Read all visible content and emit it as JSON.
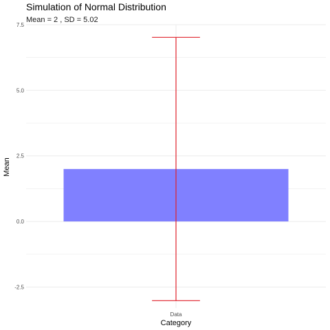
{
  "chart_data": {
    "type": "bar",
    "title": "Simulation of Normal  Distribution",
    "subtitle": "Mean =  2 , SD =  5.02",
    "xlabel": "Category",
    "ylabel": "Mean",
    "categories": [
      "Data"
    ],
    "values": [
      2
    ],
    "error_bars": [
      {
        "low": -3.02,
        "high": 7.02
      }
    ],
    "ylim": [
      -3.3,
      7.5
    ],
    "yticks": [
      -2.5,
      0.0,
      2.5,
      5.0,
      7.5
    ],
    "ytick_labels": [
      "-2.5",
      "0.0",
      "2.5",
      "5.0",
      "7.5"
    ],
    "bar_color": "#8080ff",
    "errorbar_color": "#e0202a",
    "grid": true,
    "grid_color": "#ebebeb"
  }
}
